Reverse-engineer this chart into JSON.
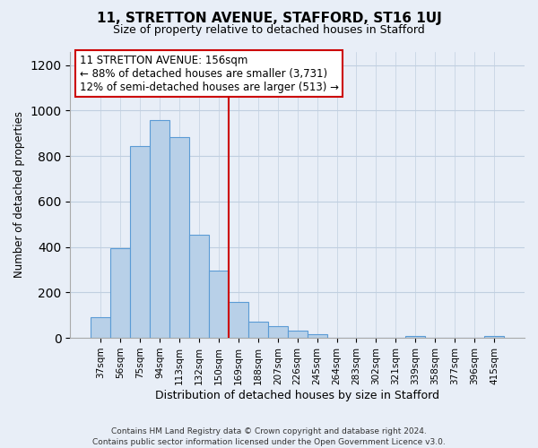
{
  "title": "11, STRETTON AVENUE, STAFFORD, ST16 1UJ",
  "subtitle": "Size of property relative to detached houses in Stafford",
  "xlabel": "Distribution of detached houses by size in Stafford",
  "ylabel": "Number of detached properties",
  "bar_labels": [
    "37sqm",
    "56sqm",
    "75sqm",
    "94sqm",
    "113sqm",
    "132sqm",
    "150sqm",
    "169sqm",
    "188sqm",
    "207sqm",
    "226sqm",
    "245sqm",
    "264sqm",
    "283sqm",
    "302sqm",
    "321sqm",
    "339sqm",
    "358sqm",
    "377sqm",
    "396sqm",
    "415sqm"
  ],
  "bar_values": [
    90,
    395,
    845,
    960,
    885,
    455,
    295,
    160,
    70,
    50,
    33,
    18,
    0,
    0,
    0,
    0,
    10,
    0,
    0,
    0,
    10
  ],
  "bar_color": "#b8d0e8",
  "bar_edge_color": "#5b9bd5",
  "vline_x_idx": 6.5,
  "vline_color": "#cc0000",
  "annotation_line1": "11 STRETTON AVENUE: 156sqm",
  "annotation_line2": "← 88% of detached houses are smaller (3,731)",
  "annotation_line3": "12% of semi-detached houses are larger (513) →",
  "annotation_box_color": "#ffffff",
  "annotation_box_edge": "#cc0000",
  "ylim": [
    0,
    1260
  ],
  "yticks": [
    0,
    200,
    400,
    600,
    800,
    1000,
    1200
  ],
  "footer_text": "Contains HM Land Registry data © Crown copyright and database right 2024.\nContains public sector information licensed under the Open Government Licence v3.0.",
  "bg_color": "#e8eef7",
  "plot_bg_color": "#e8eef7",
  "grid_color": "#c0cfe0"
}
